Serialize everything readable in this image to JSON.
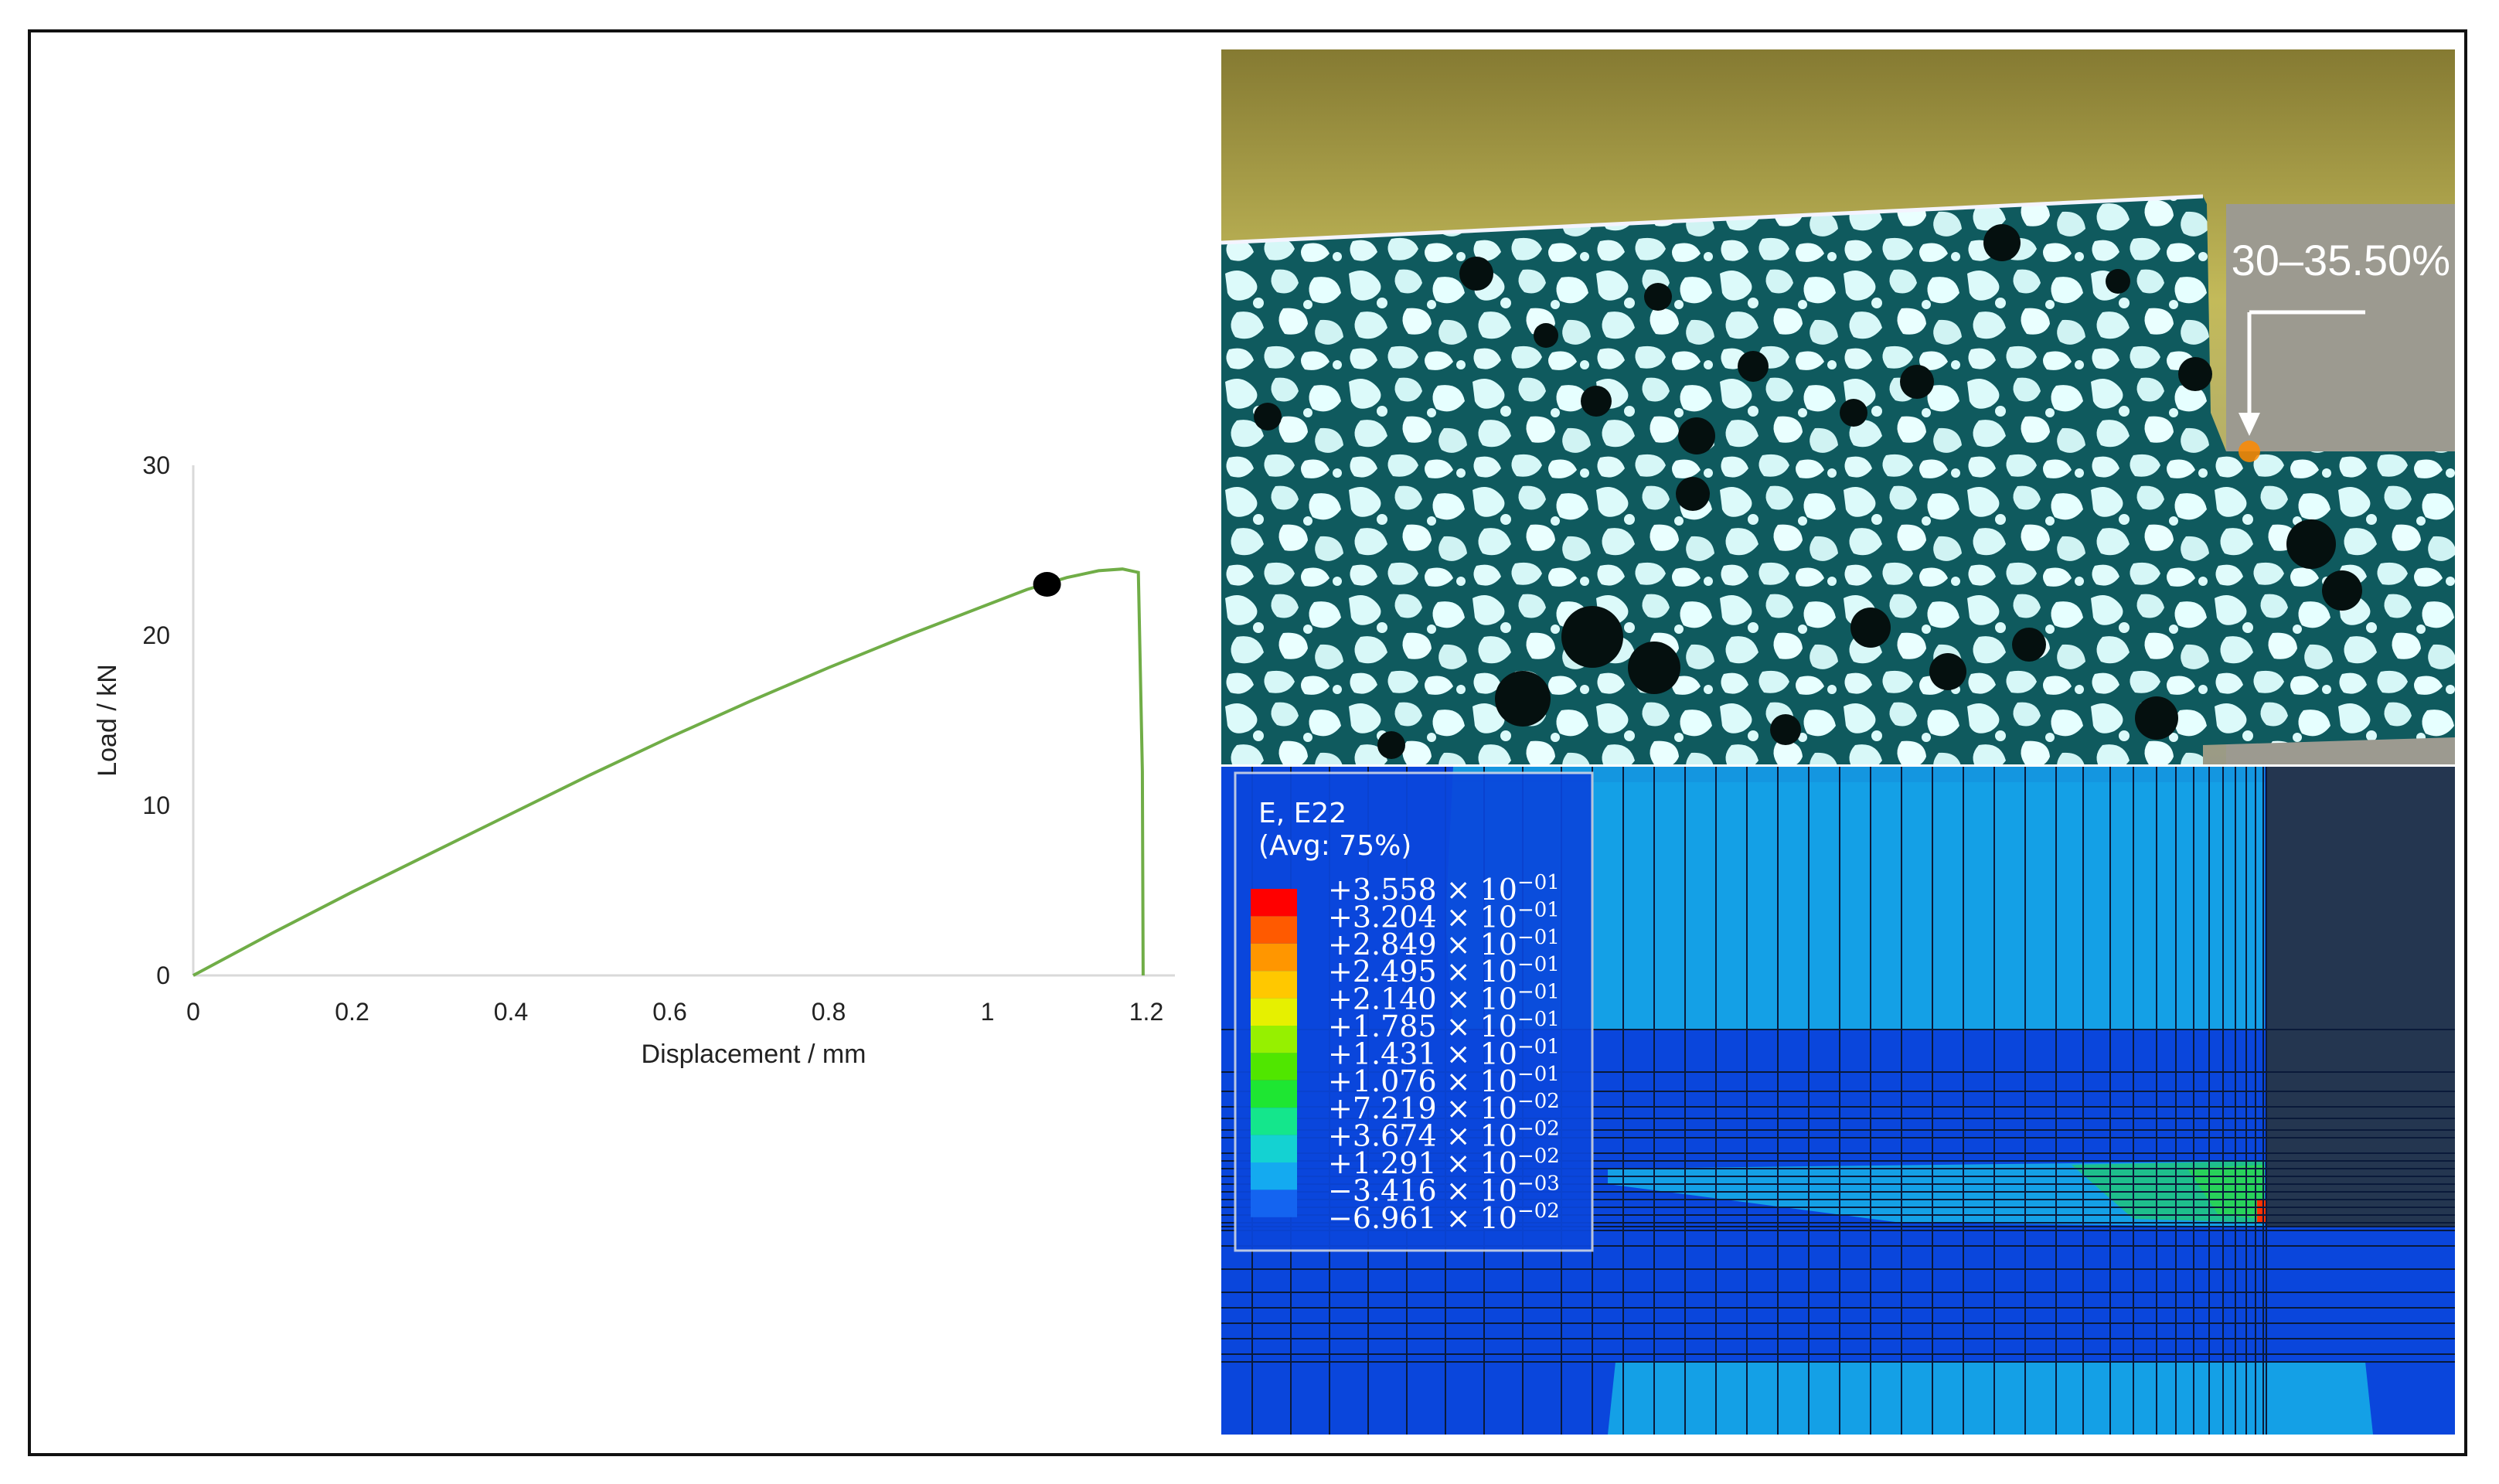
{
  "chart_data": {
    "type": "line",
    "xlabel": "Displacement / mm",
    "ylabel": "Load / kN",
    "xlim": [
      0,
      1.2
    ],
    "ylim": [
      0,
      30
    ],
    "x_ticks": [
      "0",
      "0.2",
      "0.4",
      "0.6",
      "0.8",
      "1",
      "1.2"
    ],
    "y_ticks": [
      "0",
      "10",
      "20",
      "30"
    ],
    "grid": false,
    "series": [
      {
        "color": "#70ad47",
        "x": [
          0,
          0.1,
          0.2,
          0.3,
          0.4,
          0.5,
          0.6,
          0.7,
          0.8,
          0.9,
          1.0,
          1.05,
          1.1,
          1.14,
          1.17,
          1.19,
          1.195,
          1.196
        ],
        "y": [
          0,
          2.5,
          4.9,
          7.2,
          9.5,
          11.8,
          14.0,
          16.1,
          18.1,
          20.0,
          21.8,
          22.7,
          23.4,
          23.8,
          23.9,
          23.7,
          12.0,
          0
        ]
      }
    ],
    "markers": [
      {
        "x": 1.075,
        "y": 23.0,
        "color": "#000000"
      }
    ]
  },
  "dic_image": {
    "annotation": "30–35.50%"
  },
  "fea_legend": {
    "title_line1": "E, E22",
    "title_line2": "(Avg: 75%)",
    "entries": [
      {
        "mantissa": "+3.558",
        "exponent": "−01",
        "color": "#ff0000"
      },
      {
        "mantissa": "+3.204",
        "exponent": "−01",
        "color": "#ff5a00"
      },
      {
        "mantissa": "+2.849",
        "exponent": "−01",
        "color": "#ff9600"
      },
      {
        "mantissa": "+2.495",
        "exponent": "−01",
        "color": "#ffc800"
      },
      {
        "mantissa": "+2.140",
        "exponent": "−01",
        "color": "#e6f000"
      },
      {
        "mantissa": "+1.785",
        "exponent": "−01",
        "color": "#96f000"
      },
      {
        "mantissa": "+1.431",
        "exponent": "−01",
        "color": "#50e600"
      },
      {
        "mantissa": "+1.076",
        "exponent": "−01",
        "color": "#1ee632"
      },
      {
        "mantissa": "+7.219",
        "exponent": "−02",
        "color": "#14e68c"
      },
      {
        "mantissa": "+3.674",
        "exponent": "−02",
        "color": "#14d2d2"
      },
      {
        "mantissa": "+1.291",
        "exponent": "−02",
        "color": "#14aaf0"
      },
      {
        "mantissa": "−3.416",
        "exponent": "−03",
        "color": "#1464f0"
      },
      {
        "mantissa": "−6.961",
        "exponent": "−02",
        "color": "#0a1eeb"
      }
    ]
  }
}
